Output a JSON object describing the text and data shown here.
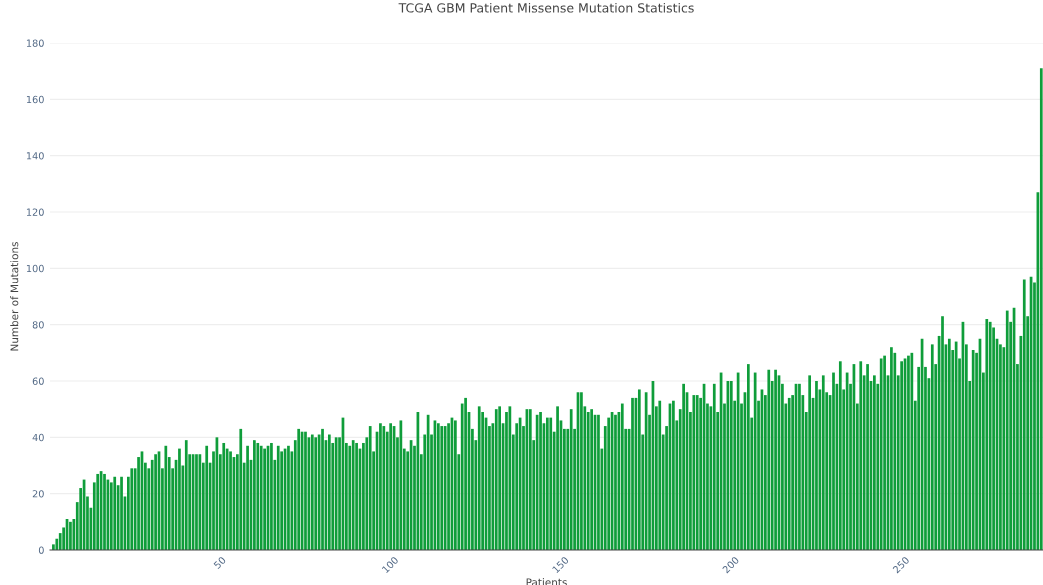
{
  "chart_data": {
    "type": "bar",
    "title": "TCGA GBM Patient Missense Mutation Statistics",
    "xlabel": "Patients",
    "ylabel": "Number of Mutations",
    "color": "#0f9d3a",
    "x": [
      1,
      2,
      3,
      4,
      5,
      6,
      7,
      8,
      9,
      10,
      11,
      12,
      13,
      14,
      15,
      16,
      17,
      18,
      19,
      20,
      21,
      22,
      23,
      24,
      25,
      26,
      27,
      28,
      29,
      30,
      31,
      32,
      33,
      34,
      35,
      36,
      37,
      38,
      39,
      40,
      41,
      42,
      43,
      44,
      45,
      46,
      47,
      48,
      49,
      50,
      51,
      52,
      53,
      54,
      55,
      56,
      57,
      58,
      59,
      60,
      61,
      62,
      63,
      64,
      65,
      66,
      67,
      68,
      69,
      70,
      71,
      72,
      73,
      74,
      75,
      76,
      77,
      78,
      79,
      80,
      81,
      82,
      83,
      84,
      85,
      86,
      87,
      88,
      89,
      90,
      91,
      92,
      93,
      94,
      95,
      96,
      97,
      98,
      99,
      100,
      101,
      102,
      103,
      104,
      105,
      106,
      107,
      108,
      109,
      110,
      111,
      112,
      113,
      114,
      115,
      116,
      117,
      118,
      119,
      120,
      121,
      122,
      123,
      124,
      125,
      126,
      127,
      128,
      129,
      130,
      131,
      132,
      133,
      134,
      135,
      136,
      137,
      138,
      139,
      140,
      141,
      142,
      143,
      144,
      145,
      146,
      147,
      148,
      149,
      150,
      151,
      152,
      153,
      154,
      155,
      156,
      157,
      158,
      159,
      160,
      161,
      162,
      163,
      164,
      165,
      166,
      167,
      168,
      169,
      170,
      171,
      172,
      173,
      174,
      175,
      176,
      177,
      178,
      179,
      180,
      181,
      182,
      183,
      184,
      185,
      186,
      187,
      188,
      189,
      190,
      191,
      192,
      193,
      194,
      195,
      196,
      197,
      198,
      199,
      200,
      201,
      202,
      203,
      204,
      205,
      206,
      207,
      208,
      209,
      210,
      211,
      212,
      213,
      214,
      215,
      216,
      217,
      218,
      219,
      220,
      221,
      222,
      223,
      224,
      225,
      226,
      227,
      228,
      229,
      230,
      231,
      232,
      233,
      234,
      235,
      236,
      237,
      238,
      239,
      240,
      241,
      242,
      243,
      244,
      245,
      246,
      247,
      248,
      249,
      250,
      251,
      252,
      253,
      254,
      255,
      256,
      257,
      258,
      259,
      260,
      261,
      262,
      263,
      264,
      265,
      266,
      267,
      268,
      269,
      270,
      271,
      272,
      273,
      274,
      275,
      276,
      277,
      278,
      279,
      280,
      281,
      282,
      283,
      284,
      285,
      286,
      287,
      288,
      289,
      290,
      291
    ],
    "values": [
      2,
      4,
      6,
      8,
      11,
      10,
      11,
      17,
      22,
      25,
      19,
      15,
      24,
      27,
      28,
      27,
      25,
      24,
      26,
      23,
      26,
      19,
      26,
      29,
      29,
      33,
      35,
      31,
      29,
      32,
      34,
      35,
      29,
      37,
      33,
      29,
      32,
      36,
      30,
      39,
      34,
      34,
      34,
      34,
      31,
      37,
      31,
      35,
      40,
      34,
      38,
      36,
      35,
      33,
      34,
      43,
      31,
      37,
      32,
      39,
      38,
      37,
      36,
      37,
      38,
      32,
      37,
      35,
      36,
      37,
      35,
      39,
      43,
      42,
      42,
      40,
      41,
      40,
      41,
      43,
      39,
      41,
      38,
      40,
      40,
      47,
      38,
      37,
      39,
      38,
      36,
      38,
      40,
      44,
      35,
      42,
      45,
      44,
      42,
      45,
      44,
      40,
      46,
      36,
      35,
      39,
      37,
      49,
      34,
      41,
      48,
      41,
      46,
      45,
      44,
      44,
      45,
      47,
      46,
      34,
      52,
      54,
      49,
      43,
      39,
      51,
      49,
      47,
      44,
      45,
      50,
      51,
      45,
      49,
      51,
      41,
      45,
      47,
      44,
      50,
      50,
      39,
      48,
      49,
      45,
      47,
      47,
      42,
      51,
      46,
      43,
      43,
      50,
      43,
      56,
      56,
      51,
      49,
      50,
      48,
      48,
      36,
      44,
      47,
      49,
      48,
      49,
      52,
      43,
      43,
      54,
      54,
      57,
      41,
      56,
      48,
      60,
      51,
      53,
      41,
      44,
      52,
      53,
      46,
      50,
      59,
      56,
      49,
      55,
      55,
      54,
      59,
      52,
      51,
      59,
      49,
      63,
      52,
      60,
      60,
      53,
      63,
      52,
      56,
      66,
      47,
      63,
      53,
      57,
      55,
      64,
      60,
      64,
      62,
      59,
      52,
      54,
      55,
      59,
      59,
      55,
      49,
      62,
      54,
      60,
      57,
      62,
      56,
      55,
      63,
      59,
      67,
      57,
      63,
      59,
      66,
      52,
      67,
      62,
      66,
      60,
      62,
      59,
      68,
      69,
      62,
      72,
      70,
      62,
      67,
      68,
      69,
      70,
      53,
      65,
      75,
      65,
      61,
      73,
      66,
      76,
      83,
      73,
      75,
      71,
      74,
      68,
      81,
      73,
      60,
      71,
      70,
      75,
      63,
      82,
      81,
      79,
      75,
      73,
      72,
      85,
      81,
      86,
      66,
      76,
      96,
      83,
      97,
      95,
      127,
      171
    ],
    "xlim": [
      0,
      291.5
    ],
    "xticks": [
      50,
      100,
      150,
      200,
      250
    ],
    "ylim": [
      0,
      180
    ],
    "yticks": [
      0,
      20,
      40,
      60,
      80,
      100,
      120,
      140,
      160,
      180
    ],
    "grid": "y"
  }
}
